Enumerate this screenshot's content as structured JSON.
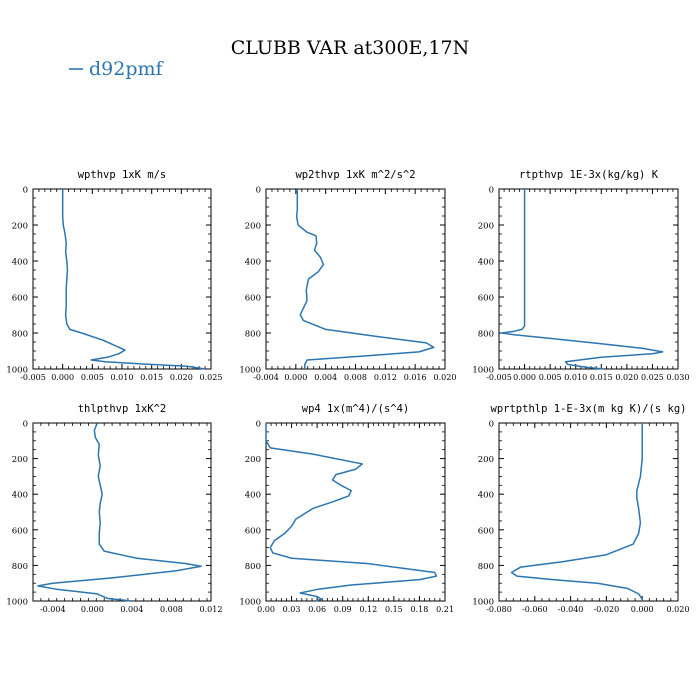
{
  "figure": {
    "title": "CLUBB VAR at300E,17N",
    "legend": {
      "label": "d92pmf",
      "color": "#2b75b0"
    }
  },
  "line_color": "#2b75b0",
  "chart_data": [
    {
      "type": "line",
      "title": "wpthvp  1xK m/s",
      "xlim": [
        -0.005,
        0.025
      ],
      "ylim": [
        1000,
        0
      ],
      "xticks": [
        "-0.005",
        "0.000",
        "0.005",
        "0.010",
        "0.015",
        "0.020",
        "0.025"
      ],
      "xtick_values": [
        -0.005,
        0.0,
        0.005,
        0.01,
        0.015,
        0.02,
        0.025
      ],
      "yticks": [
        "0",
        "200",
        "400",
        "600",
        "800",
        "1000"
      ],
      "ytick_values": [
        0,
        200,
        400,
        600,
        800,
        1000
      ],
      "series": [
        {
          "x": [
            0.0,
            0.0,
            0.0001,
            0.0004,
            0.0006,
            0.0005,
            0.0007,
            0.0008,
            0.0007,
            0.0006,
            0.0006,
            0.0006,
            0.0005,
            0.0007,
            0.0012,
            0.0032,
            0.0068,
            0.0105,
            0.0095,
            0.0075,
            0.0048,
            0.0072,
            0.0135,
            0.021,
            0.024
          ],
          "y": [
            0,
            150,
            200,
            250,
            300,
            350,
            400,
            450,
            500,
            550,
            600,
            650,
            700,
            750,
            780,
            800,
            840,
            895,
            915,
            935,
            950,
            960,
            972,
            985,
            1000
          ]
        }
      ]
    },
    {
      "type": "line",
      "title": "wp2thvp  1xK m^2/s^2",
      "xlim": [
        -0.004,
        0.02
      ],
      "ylim": [
        1000,
        0
      ],
      "xticks": [
        "-0.004",
        "0.000",
        "0.004",
        "0.008",
        "0.012",
        "0.016",
        "0.020"
      ],
      "xtick_values": [
        -0.004,
        0.0,
        0.004,
        0.008,
        0.012,
        0.016,
        0.02
      ],
      "yticks": [
        "0",
        "200",
        "400",
        "600",
        "800",
        "1000"
      ],
      "ytick_values": [
        0,
        200,
        400,
        600,
        800,
        1000
      ],
      "series": [
        {
          "x": [
            0.0002,
            0.0002,
            0.0001,
            0.0003,
            0.0015,
            0.0027,
            0.0028,
            0.0025,
            0.0033,
            0.0037,
            0.003,
            0.0017,
            0.0014,
            0.0015,
            0.0008,
            0.0006,
            0.001,
            0.004,
            0.011,
            0.0175,
            0.0185,
            0.0165,
            0.0085,
            0.0015,
            0.0012,
            0.0012
          ],
          "y": [
            0,
            120,
            150,
            200,
            240,
            260,
            300,
            340,
            380,
            420,
            460,
            500,
            560,
            620,
            680,
            700,
            730,
            780,
            820,
            855,
            880,
            905,
            930,
            950,
            975,
            1000
          ]
        }
      ]
    },
    {
      "type": "line",
      "title": "rtpthvp  1E-3x(kg/kg) K",
      "xlim": [
        -0.005,
        0.03
      ],
      "ylim": [
        1000,
        0
      ],
      "xticks": [
        "-0.005",
        "0.000",
        "0.005",
        "0.010",
        "0.015",
        "0.020",
        "0.025",
        "0.030"
      ],
      "xtick_values": [
        -0.005,
        0.0,
        0.005,
        0.01,
        0.015,
        0.02,
        0.025,
        0.03
      ],
      "yticks": [
        "0",
        "200",
        "400",
        "600",
        "800",
        "1000"
      ],
      "ytick_values": [
        0,
        200,
        400,
        600,
        800,
        1000
      ],
      "series": [
        {
          "x": [
            0.0,
            0.0,
            0.0,
            0.0,
            0.0,
            0.0,
            0.0,
            -0.0005,
            -0.002,
            -0.0045,
            -0.002,
            0.005,
            0.015,
            0.023,
            0.027,
            0.025,
            0.015,
            0.008,
            0.0085,
            0.012,
            0.0155
          ],
          "y": [
            0,
            200,
            400,
            600,
            700,
            740,
            760,
            780,
            790,
            800,
            810,
            830,
            860,
            885,
            905,
            915,
            935,
            960,
            975,
            990,
            1000
          ]
        }
      ]
    },
    {
      "type": "line",
      "title": "thlpthvp  1xK^2",
      "xlim": [
        -0.006,
        0.012
      ],
      "ylim": [
        1000,
        0
      ],
      "xticks": [
        "-0.004",
        "0.000",
        "0.004",
        "0.008",
        "0.012"
      ],
      "xtick_values": [
        -0.004,
        0.0,
        0.004,
        0.008,
        0.012
      ],
      "yticks": [
        "0",
        "200",
        "400",
        "600",
        "800",
        "1000"
      ],
      "ytick_values": [
        0,
        200,
        400,
        600,
        800,
        1000
      ],
      "series": [
        {
          "x": [
            0.0005,
            0.0002,
            0.0003,
            0.0007,
            0.0006,
            0.0008,
            0.0006,
            0.0008,
            0.001,
            0.0008,
            0.0007,
            0.0008,
            0.0007,
            0.0007,
            0.0012,
            0.0045,
            0.0095,
            0.011,
            0.0085,
            0.002,
            -0.004,
            -0.0055,
            -0.0035,
            0.0005,
            0.0015,
            0.004
          ],
          "y": [
            0,
            40,
            80,
            120,
            180,
            240,
            300,
            350,
            400,
            450,
            500,
            560,
            620,
            680,
            720,
            760,
            790,
            805,
            830,
            870,
            900,
            915,
            935,
            960,
            985,
            1000
          ]
        }
      ]
    },
    {
      "type": "line",
      "title": "wp4  1x(m^4)/(s^4)",
      "xlim": [
        0.0,
        0.21
      ],
      "ylim": [
        1000,
        0
      ],
      "xticks": [
        "0.00",
        "0.03",
        "0.06",
        "0.09",
        "0.12",
        "0.15",
        "0.18",
        "0.21"
      ],
      "xtick_values": [
        0.0,
        0.03,
        0.06,
        0.09,
        0.12,
        0.15,
        0.18,
        0.21
      ],
      "yticks": [
        "0",
        "200",
        "400",
        "600",
        "800",
        "1000"
      ],
      "ytick_values": [
        0,
        200,
        400,
        600,
        800,
        1000
      ],
      "series": [
        {
          "x": [
            0.0,
            0.0,
            0.0,
            0.005,
            0.055,
            0.113,
            0.105,
            0.082,
            0.078,
            0.088,
            0.1,
            0.097,
            0.08,
            0.055,
            0.035,
            0.03,
            0.022,
            0.01,
            0.005,
            0.008,
            0.03,
            0.12,
            0.198,
            0.2,
            0.18,
            0.1,
            0.06,
            0.04,
            0.06,
            0.065,
            0.058
          ],
          "y": [
            0,
            60,
            100,
            140,
            175,
            230,
            260,
            290,
            320,
            350,
            380,
            410,
            440,
            480,
            540,
            580,
            620,
            660,
            700,
            730,
            760,
            790,
            840,
            860,
            880,
            910,
            935,
            955,
            975,
            990,
            1000
          ]
        }
      ]
    },
    {
      "type": "line",
      "title": "wprtpthlp  1-E-3x(m kg K)/(s kg)",
      "xlim": [
        -0.08,
        0.02
      ],
      "ylim": [
        1000,
        0
      ],
      "xticks": [
        "-0.080",
        "-0.060",
        "-0.040",
        "-0.020",
        "0.000",
        "0.020"
      ],
      "xtick_values": [
        -0.08,
        -0.06,
        -0.04,
        -0.02,
        0.0,
        0.02
      ],
      "yticks": [
        "0",
        "200",
        "400",
        "600",
        "800",
        "1000"
      ],
      "ytick_values": [
        0,
        200,
        400,
        600,
        800,
        1000
      ],
      "series": [
        {
          "x": [
            0.0,
            0.0,
            0.0,
            -0.001,
            -0.003,
            -0.003,
            -0.002,
            -0.001,
            -0.002,
            -0.005,
            -0.02,
            -0.045,
            -0.068,
            -0.073,
            -0.07,
            -0.05,
            -0.025,
            -0.008,
            -0.002,
            0.0,
            0.0
          ],
          "y": [
            0,
            100,
            200,
            300,
            380,
            420,
            480,
            560,
            620,
            680,
            740,
            780,
            810,
            840,
            860,
            880,
            900,
            930,
            960,
            990,
            1000
          ]
        }
      ]
    }
  ]
}
